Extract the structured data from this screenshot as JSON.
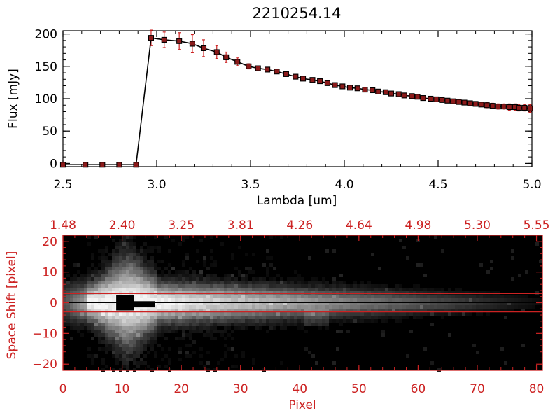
{
  "chart_data": [
    {
      "type": "line",
      "title": "2210254.14",
      "xlabel": "Lambda [um]",
      "ylabel": "Flux [mJy]",
      "xlim": [
        2.5,
        5.0
      ],
      "ylim": [
        -5,
        205
      ],
      "xtick_values": [
        2.5,
        3.0,
        3.5,
        4.0,
        4.5,
        5.0
      ],
      "xtick_labels": [
        "2.5",
        "3.0",
        "3.5",
        "4.0",
        "4.5",
        "5.0"
      ],
      "ytick_values": [
        0,
        50,
        100,
        150,
        200
      ],
      "ytick_labels": [
        "0",
        "50",
        "100",
        "150",
        "200"
      ],
      "grid": false,
      "line_color": "#000000",
      "marker_color": "#8b1a1a",
      "errorbar_color": "#cc2222",
      "series": [
        {
          "x": [
            2.5,
            2.62,
            2.71,
            2.8,
            2.89,
            2.97,
            3.04,
            3.12,
            3.19,
            3.25,
            3.32,
            3.37,
            3.43,
            3.49,
            3.54,
            3.59,
            3.64,
            3.69,
            3.74,
            3.78,
            3.83,
            3.87,
            3.91,
            3.95,
            3.99,
            4.03,
            4.07,
            4.11,
            4.15,
            4.18,
            4.22,
            4.25,
            4.29,
            4.32,
            4.36,
            4.39,
            4.42,
            4.46,
            4.49,
            4.52,
            4.55,
            4.58,
            4.61,
            4.64,
            4.67,
            4.7,
            4.73,
            4.76,
            4.79,
            4.82,
            4.85,
            4.88,
            4.91,
            4.93,
            4.96,
            4.99
          ],
          "y": [
            -2,
            -2,
            -2,
            -2,
            -2,
            194,
            191,
            189,
            185,
            178,
            172,
            164,
            157,
            150,
            147,
            145,
            142,
            138,
            134,
            131,
            129,
            127,
            124,
            121,
            119,
            117,
            116,
            114,
            113,
            111,
            110,
            108,
            107,
            105,
            104,
            103,
            101,
            100,
            99,
            98,
            97,
            96,
            95,
            94,
            93,
            92,
            91,
            90,
            89,
            88,
            88,
            87,
            87,
            86,
            86,
            85
          ],
          "yerr": [
            0,
            0,
            0,
            0,
            0,
            12,
            12,
            13,
            14,
            13,
            10,
            8,
            6,
            4,
            3,
            3,
            3,
            3,
            3,
            3,
            3,
            3,
            3,
            3,
            3,
            3,
            3,
            3,
            3,
            3,
            3,
            3,
            3,
            3,
            3,
            3,
            3,
            3,
            3,
            3,
            3,
            3,
            3,
            3,
            3,
            3,
            3,
            4,
            4,
            4,
            4,
            5,
            5,
            5,
            5,
            6
          ]
        }
      ]
    },
    {
      "type": "heatmap",
      "xlabel": "Pixel",
      "ylabel": "Space Shift [pixel]",
      "xlim": [
        0,
        81
      ],
      "ylim": [
        -22,
        22
      ],
      "xtick_values": [
        0,
        10,
        20,
        30,
        40,
        50,
        60,
        70,
        80
      ],
      "xtick_labels": [
        "0",
        "10",
        "20",
        "30",
        "40",
        "50",
        "60",
        "70",
        "80"
      ],
      "ytick_values": [
        -20,
        -10,
        0,
        10,
        20
      ],
      "ytick_labels": [
        "−20",
        "−10",
        "0",
        "10",
        "20"
      ],
      "top_axis_labels": [
        "1.48",
        "2.40",
        "3.25",
        "3.81",
        "4.26",
        "4.64",
        "4.98",
        "5.30",
        "5.55"
      ],
      "aperture_lines": [
        3,
        -3
      ],
      "trace_center": 0,
      "axis_color": "#cc2222",
      "colormap": "grayscale"
    }
  ]
}
